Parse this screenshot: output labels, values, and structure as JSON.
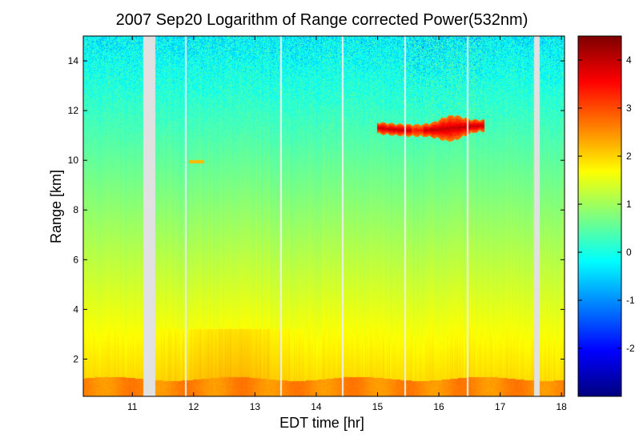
{
  "chart_data": {
    "type": "heatmap",
    "title": "2007 Sep20  Logarithm of Range corrected Power(532nm)",
    "xlabel": "EDT time [hr]",
    "ylabel": "Range [km]",
    "xlim": [
      10.2,
      18.05
    ],
    "ylim": [
      0.5,
      15
    ],
    "xticks": [
      11,
      12,
      13,
      14,
      15,
      16,
      17,
      18
    ],
    "yticks": [
      2,
      4,
      6,
      8,
      10,
      12,
      14
    ],
    "colorbar": {
      "colormap": "jet",
      "clim": [
        -3,
        4.5
      ],
      "ticks": [
        -2,
        -1,
        0,
        1,
        2,
        3,
        4
      ]
    },
    "data_gaps_hr": [
      [
        11.18,
        11.38
      ],
      [
        17.55,
        17.64
      ]
    ],
    "thin_gaps_hr": [
      11.87,
      13.43,
      14.43,
      15.45,
      16.47
    ],
    "cloud_layer": {
      "start_hr": 15.0,
      "end_hr": 16.75,
      "base_km": 10.8,
      "top_km": 11.8,
      "peak_value": 4.0
    },
    "boundary_layer_top_km": 1.2
  }
}
